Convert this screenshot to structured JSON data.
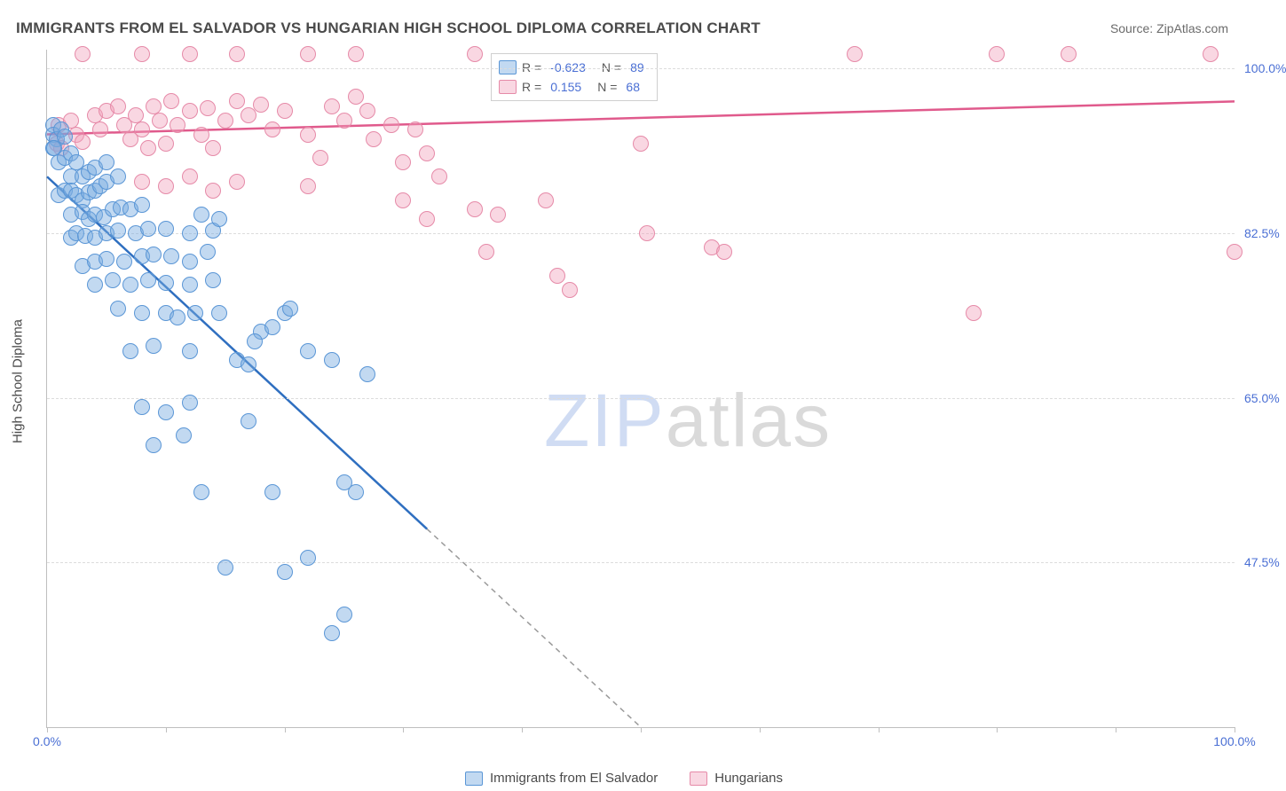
{
  "title": "IMMIGRANTS FROM EL SALVADOR VS HUNGARIAN HIGH SCHOOL DIPLOMA CORRELATION CHART",
  "source": "Source: ZipAtlas.com",
  "ylabel": "High School Diploma",
  "watermark_a": "ZIP",
  "watermark_b": "atlas",
  "axes": {
    "xmin": 0,
    "xmax": 100,
    "ymin": 30,
    "ymax": 102,
    "xticks": [
      0,
      10,
      20,
      30,
      40,
      50,
      60,
      70,
      80,
      90,
      100
    ],
    "xtick_labels": {
      "0": "0.0%",
      "100": "100.0%"
    },
    "yticks": [
      47.5,
      65.0,
      82.5,
      100.0
    ],
    "ytick_labels": [
      "47.5%",
      "65.0%",
      "82.5%",
      "100.0%"
    ],
    "grid_color": "#dcdcdc",
    "axis_color": "#bfbfbf",
    "tick_label_color": "#4a6fd4"
  },
  "series": {
    "blue": {
      "label": "Immigrants from El Salvador",
      "fill": "rgba(120,170,225,0.45)",
      "stroke": "#5a96d6",
      "line_color": "#2f6fc0",
      "marker_r": 9,
      "R": "-0.623",
      "N": "89",
      "reg": {
        "x1": 0,
        "y1": 88.5,
        "x2": 50,
        "y2": 30,
        "dash_x1": 32,
        "dash_x2": 50
      },
      "points": [
        [
          0.5,
          94
        ],
        [
          0.5,
          93
        ],
        [
          0.8,
          92.5
        ],
        [
          0.5,
          91.5
        ],
        [
          0.6,
          91.5
        ],
        [
          1.2,
          93.5
        ],
        [
          1.5,
          92.8
        ],
        [
          1,
          90
        ],
        [
          1.5,
          90.5
        ],
        [
          2,
          91
        ],
        [
          2.5,
          90
        ],
        [
          2,
          88.5
        ],
        [
          3,
          88.5
        ],
        [
          3.5,
          89
        ],
        [
          4,
          89.5
        ],
        [
          5,
          90
        ],
        [
          1,
          86.5
        ],
        [
          1.5,
          87
        ],
        [
          2,
          87
        ],
        [
          2.5,
          86.5
        ],
        [
          3,
          86
        ],
        [
          3.5,
          86.8
        ],
        [
          4,
          87
        ],
        [
          4.5,
          87.5
        ],
        [
          5,
          88
        ],
        [
          6,
          88.5
        ],
        [
          2,
          84.5
        ],
        [
          3,
          84.8
        ],
        [
          3.5,
          84
        ],
        [
          4,
          84.5
        ],
        [
          4.8,
          84.2
        ],
        [
          5.5,
          85
        ],
        [
          6.2,
          85.2
        ],
        [
          7,
          85
        ],
        [
          8,
          85.5
        ],
        [
          2,
          82
        ],
        [
          2.5,
          82.5
        ],
        [
          3.2,
          82.2
        ],
        [
          4,
          82
        ],
        [
          5,
          82.5
        ],
        [
          6,
          82.8
        ],
        [
          7.5,
          82.5
        ],
        [
          8.5,
          83
        ],
        [
          10,
          83
        ],
        [
          12,
          82.5
        ],
        [
          14,
          82.8
        ],
        [
          13,
          84.5
        ],
        [
          14.5,
          84
        ],
        [
          3,
          79
        ],
        [
          4,
          79.5
        ],
        [
          5,
          79.8
        ],
        [
          6.5,
          79.5
        ],
        [
          8,
          80
        ],
        [
          9,
          80.2
        ],
        [
          10.5,
          80
        ],
        [
          12,
          79.5
        ],
        [
          13.5,
          80.5
        ],
        [
          4,
          77
        ],
        [
          5.5,
          77.5
        ],
        [
          7,
          77
        ],
        [
          8.5,
          77.5
        ],
        [
          10,
          77.2
        ],
        [
          12,
          77
        ],
        [
          14,
          77.5
        ],
        [
          6,
          74.5
        ],
        [
          8,
          74
        ],
        [
          10,
          74
        ],
        [
          11,
          73.5
        ],
        [
          12.5,
          74
        ],
        [
          14.5,
          74
        ],
        [
          18,
          72
        ],
        [
          19,
          72.5
        ],
        [
          20,
          74
        ],
        [
          20.5,
          74.5
        ],
        [
          7,
          70
        ],
        [
          9,
          70.5
        ],
        [
          12,
          70
        ],
        [
          16,
          69
        ],
        [
          17,
          68.5
        ],
        [
          17.5,
          71
        ],
        [
          22,
          70
        ],
        [
          24,
          69
        ],
        [
          27,
          67.5
        ],
        [
          8,
          64
        ],
        [
          10,
          63.5
        ],
        [
          12,
          64.5
        ],
        [
          17,
          62.5
        ],
        [
          9,
          60
        ],
        [
          11.5,
          61
        ],
        [
          13,
          55
        ],
        [
          19,
          55
        ],
        [
          15,
          47
        ],
        [
          20,
          46.5
        ],
        [
          22,
          48
        ],
        [
          25,
          56
        ],
        [
          26,
          55
        ],
        [
          25,
          42
        ],
        [
          24,
          40
        ]
      ]
    },
    "pink": {
      "label": "Hungarians",
      "fill": "rgba(240,160,185,0.42)",
      "stroke": "#e68aa8",
      "line_color": "#e05a8c",
      "marker_r": 9,
      "R": "0.155",
      "N": "68",
      "reg": {
        "x1": 0,
        "y1": 93,
        "x2": 100,
        "y2": 96.5
      },
      "points": [
        [
          1,
          94
        ],
        [
          2,
          94.5
        ],
        [
          0.8,
          92
        ],
        [
          1.2,
          91.5
        ],
        [
          2.5,
          93
        ],
        [
          3,
          92.2
        ],
        [
          3,
          101.5
        ],
        [
          8,
          101.5
        ],
        [
          12,
          101.5
        ],
        [
          16,
          101.5
        ],
        [
          22,
          101.5
        ],
        [
          26,
          101.5
        ],
        [
          36,
          101.5
        ],
        [
          68,
          101.5
        ],
        [
          80,
          101.5
        ],
        [
          86,
          101.5
        ],
        [
          98,
          101.5
        ],
        [
          4,
          95
        ],
        [
          4.5,
          93.5
        ],
        [
          5,
          95.5
        ],
        [
          6,
          96
        ],
        [
          6.5,
          94
        ],
        [
          7,
          92.5
        ],
        [
          7.5,
          95
        ],
        [
          8,
          93.5
        ],
        [
          8.5,
          91.5
        ],
        [
          9,
          96
        ],
        [
          9.5,
          94.5
        ],
        [
          10,
          92
        ],
        [
          10.5,
          96.5
        ],
        [
          11,
          94
        ],
        [
          12,
          95.5
        ],
        [
          13,
          93
        ],
        [
          13.5,
          95.8
        ],
        [
          14,
          91.5
        ],
        [
          15,
          94.5
        ],
        [
          16,
          96.5
        ],
        [
          17,
          95
        ],
        [
          18,
          96.2
        ],
        [
          19,
          93.5
        ],
        [
          20,
          95.5
        ],
        [
          22,
          93
        ],
        [
          23,
          90.5
        ],
        [
          24,
          96
        ],
        [
          25,
          94.5
        ],
        [
          26,
          97
        ],
        [
          27,
          95.5
        ],
        [
          27.5,
          92.5
        ],
        [
          29,
          94
        ],
        [
          30,
          90
        ],
        [
          31,
          93.5
        ],
        [
          32,
          91
        ],
        [
          8,
          88
        ],
        [
          10,
          87.5
        ],
        [
          12,
          88.5
        ],
        [
          14,
          87
        ],
        [
          16,
          88
        ],
        [
          22,
          87.5
        ],
        [
          30,
          86
        ],
        [
          32,
          84
        ],
        [
          33,
          88.5
        ],
        [
          36,
          85
        ],
        [
          37,
          80.5
        ],
        [
          38,
          84.5
        ],
        [
          50,
          92
        ],
        [
          50.5,
          82.5
        ],
        [
          42,
          86
        ],
        [
          44,
          76.5
        ],
        [
          43,
          78
        ],
        [
          56,
          81
        ],
        [
          57,
          80.5
        ],
        [
          78,
          74
        ],
        [
          100,
          80.5
        ]
      ]
    }
  },
  "legend_box": {
    "r_label": "R =",
    "n_label": "N ="
  }
}
